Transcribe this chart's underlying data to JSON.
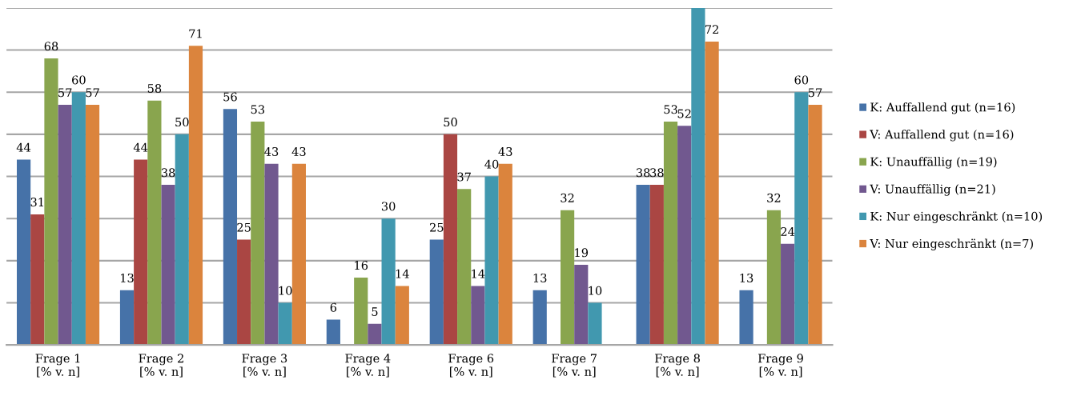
{
  "chart_data": {
    "type": "bar",
    "categories": [
      "Frage 1\n[% v. n]",
      "Frage 2\n[% v. n]",
      "Frage 3\n[% v. n]",
      "Frage 4\n[% v. n]",
      "Frage 6\n[% v. n]",
      "Frage 7\n[% v. n]",
      "Frage 8\n[% v. n]",
      "Frage 9\n[% v. n]"
    ],
    "series": [
      {
        "name": "K: Auffallend gut (n=16)",
        "color": "#4672a8",
        "values": [
          44,
          13,
          56,
          6,
          25,
          13,
          38,
          13
        ],
        "value_labels": [
          "44",
          "13",
          "56",
          "6",
          "25",
          "13",
          "38",
          "13"
        ]
      },
      {
        "name": "V: Auffallend gut (n=16)",
        "color": "#aa4643",
        "values": [
          31,
          44,
          25,
          null,
          50,
          null,
          38,
          null
        ],
        "value_labels": [
          "31",
          "44",
          "25",
          null,
          "50",
          null,
          "38",
          null
        ]
      },
      {
        "name": "K: Unauffällig (n=19)",
        "color": "#89a54e",
        "values": [
          68,
          58,
          53,
          16,
          37,
          32,
          53,
          32
        ],
        "value_labels": [
          "68",
          "58",
          "53",
          "16",
          "37",
          "32",
          "53",
          "32"
        ]
      },
      {
        "name": "V: Unauffällig (n=21)",
        "color": "#71588f",
        "values": [
          57,
          38,
          43,
          5,
          14,
          19,
          52,
          24
        ],
        "value_labels": [
          "57",
          "38",
          "43",
          "5",
          "14",
          "19",
          "52",
          "24"
        ]
      },
      {
        "name": "K: Nur eingeschränkt (n=10)",
        "color": "#4198af",
        "values": [
          60,
          50,
          10,
          30,
          40,
          10,
          80,
          60
        ],
        "value_labels": [
          "60",
          "50",
          "10",
          "30",
          "40",
          "10",
          null,
          "60"
        ]
      },
      {
        "name": "V: Nur eingeschränkt (n=7)",
        "color": "#db843d",
        "values": [
          57,
          71,
          43,
          14,
          43,
          null,
          72,
          57
        ],
        "value_labels": [
          "57",
          "71",
          "43",
          "14",
          "43",
          null,
          "72",
          "57"
        ]
      }
    ],
    "ylim": [
      0,
      80
    ],
    "yticks": [
      {
        "value": 0,
        "label": null
      },
      {
        "value": 10,
        "label": null
      },
      {
        "value": 20,
        "label": null
      },
      {
        "value": 30,
        "label": null
      },
      {
        "value": 40,
        "label": null
      },
      {
        "value": 50,
        "label": null
      },
      {
        "value": 60,
        "label": null
      },
      {
        "value": 70,
        "label": null
      },
      {
        "value": 80,
        "label": null
      }
    ],
    "grid": "y",
    "legend": "right",
    "tick_labels": "x"
  }
}
